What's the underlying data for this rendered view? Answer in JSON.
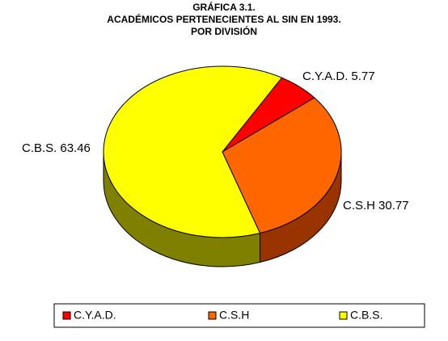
{
  "chart_data": {
    "type": "pie3d",
    "title": [
      "GRÁFICA 3.1.",
      "ACADÉMICOS PERTENECIENTES AL SIN EN 1993.",
      "POR DIVISIÓN"
    ],
    "categories": [
      "C.Y.A.D.",
      "C.S.H",
      "C.B.S."
    ],
    "values": [
      5.77,
      30.77,
      63.46
    ],
    "colors": [
      "#ff0000",
      "#ff6600",
      "#ffff00"
    ],
    "side_colors": [
      "#800000",
      "#993300",
      "#808000"
    ],
    "legend": "bottom"
  }
}
